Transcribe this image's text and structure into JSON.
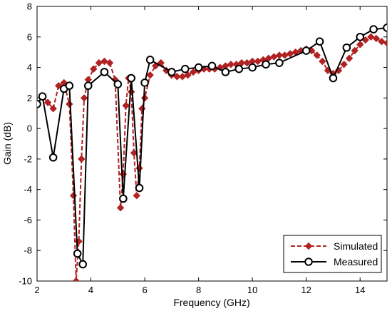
{
  "chart_data": {
    "type": "line",
    "xlabel": "Frequency (GHz)",
    "ylabel": "Gain (dB)",
    "xlim": [
      2,
      15
    ],
    "ylim": [
      -10,
      8
    ],
    "xticks": [
      2,
      4,
      6,
      8,
      10,
      12,
      14
    ],
    "yticks": [
      -10,
      -8,
      -6,
      -4,
      -2,
      0,
      2,
      4,
      6,
      8
    ],
    "grid": false,
    "legend_position": "bottom-right",
    "series": [
      {
        "name": "Simulated",
        "color": "#b22222",
        "marker": "diamond",
        "dash": "dashed",
        "x": [
          2.0,
          2.2,
          2.4,
          2.6,
          2.8,
          3.0,
          3.2,
          3.35,
          3.45,
          3.55,
          3.65,
          3.75,
          3.9,
          4.1,
          4.3,
          4.5,
          4.7,
          4.9,
          5.1,
          5.2,
          5.3,
          5.4,
          5.5,
          5.6,
          5.7,
          5.8,
          5.9,
          6.0,
          6.2,
          6.4,
          6.6,
          6.8,
          7.0,
          7.2,
          7.4,
          7.6,
          7.8,
          8.0,
          8.2,
          8.4,
          8.6,
          8.8,
          9.0,
          9.2,
          9.4,
          9.6,
          9.8,
          10.0,
          10.2,
          10.4,
          10.6,
          10.8,
          11.0,
          11.2,
          11.4,
          11.6,
          11.8,
          12.0,
          12.2,
          12.4,
          12.6,
          12.8,
          13.0,
          13.2,
          13.4,
          13.6,
          13.8,
          14.0,
          14.2,
          14.4,
          14.6,
          14.8,
          15.0
        ],
        "y": [
          1.6,
          2.1,
          1.7,
          1.3,
          2.8,
          3.0,
          1.6,
          -4.4,
          -10.0,
          -7.4,
          -2.0,
          2.0,
          3.2,
          3.9,
          4.3,
          4.4,
          4.3,
          3.2,
          -5.2,
          -3.0,
          1.5,
          3.3,
          2.4,
          -1.6,
          -4.4,
          -2.6,
          1.3,
          2.0,
          3.5,
          4.1,
          4.3,
          3.8,
          3.5,
          3.4,
          3.4,
          3.5,
          3.7,
          3.8,
          3.9,
          3.9,
          3.9,
          4.0,
          4.1,
          4.2,
          4.2,
          4.3,
          4.3,
          4.4,
          4.4,
          4.5,
          4.6,
          4.7,
          4.8,
          4.8,
          4.9,
          5.0,
          5.1,
          5.2,
          5.1,
          4.8,
          4.4,
          3.8,
          3.6,
          3.8,
          4.2,
          4.6,
          5.1,
          5.5,
          5.8,
          6.0,
          5.9,
          5.7,
          5.6
        ]
      },
      {
        "name": "Measured",
        "color": "#000000",
        "marker": "circle",
        "dash": "solid",
        "x": [
          2.0,
          2.2,
          2.6,
          3.0,
          3.2,
          3.5,
          3.7,
          3.9,
          4.5,
          5.0,
          5.2,
          5.5,
          5.8,
          6.0,
          6.2,
          7.0,
          7.5,
          8.0,
          8.5,
          9.0,
          9.5,
          10.0,
          10.5,
          11.0,
          12.0,
          12.5,
          13.0,
          13.5,
          14.0,
          14.5,
          15.0
        ],
        "y": [
          1.6,
          2.1,
          -1.9,
          2.6,
          2.8,
          -8.2,
          -8.9,
          2.8,
          3.7,
          2.9,
          -4.6,
          3.3,
          -3.9,
          3.0,
          4.5,
          3.7,
          3.9,
          4.0,
          4.1,
          3.7,
          3.9,
          4.0,
          4.2,
          4.3,
          5.1,
          5.7,
          3.3,
          5.3,
          6.0,
          6.5,
          6.6
        ]
      }
    ]
  }
}
